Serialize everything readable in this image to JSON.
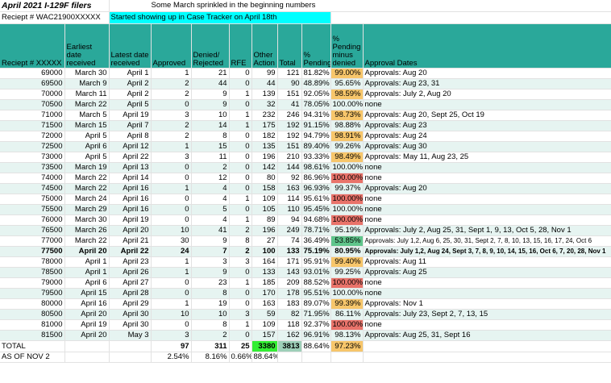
{
  "title": "April 2021 I-129F filers",
  "note1": "Some March sprinkled in the beginning numbers",
  "receipt_label": "Reciept # WAC21900XXXXX",
  "note2": "Started showing up in Case Tracker on April 18th",
  "headers": {
    "receipt": "Reciept # XXXXX",
    "earliest": "Earliest date received",
    "latest": "Latest date received",
    "approved": "Approved",
    "denied": "Denied/ Rejected",
    "rfe": "RFE",
    "other": "Other Action",
    "total": "Total",
    "pct": "% Pending",
    "pct_minus": "% Pending minus denied",
    "approval_dates": "Approval Dates"
  },
  "rows": [
    {
      "r": "69000",
      "e": "March 30",
      "l": "April 1",
      "a": "1",
      "d": "21",
      "rfe": "0",
      "o": "99",
      "t": "121",
      "p": "81.82%",
      "pm": "99.00%",
      "pmc": "y",
      "ad": "Approvals: Aug 20"
    },
    {
      "r": "69500",
      "e": "March 9",
      "l": "April 2",
      "a": "2",
      "d": "44",
      "rfe": "0",
      "o": "44",
      "t": "90",
      "p": "48.89%",
      "pm": "95.65%",
      "pmc": "y",
      "ad": "Approvals: Aug 23, 31"
    },
    {
      "r": "70000",
      "e": "March 11",
      "l": "April 2",
      "a": "2",
      "d": "9",
      "rfe": "1",
      "o": "139",
      "t": "151",
      "p": "92.05%",
      "pm": "98.59%",
      "pmc": "y",
      "ad": "Approvals: July 2, Aug 20"
    },
    {
      "r": "70500",
      "e": "March 22",
      "l": "April 5",
      "a": "0",
      "d": "9",
      "rfe": "0",
      "o": "32",
      "t": "41",
      "p": "78.05%",
      "pm": "100.00%",
      "pmc": "r",
      "ad": "none"
    },
    {
      "r": "71000",
      "e": "March 5",
      "l": "April 19",
      "a": "3",
      "d": "10",
      "rfe": "1",
      "o": "232",
      "t": "246",
      "p": "94.31%",
      "pm": "98.73%",
      "pmc": "y",
      "ad": "Approvals: Aug 20, Sept 25, Oct 19"
    },
    {
      "r": "71500",
      "e": "March 15",
      "l": "April 7",
      "a": "2",
      "d": "14",
      "rfe": "1",
      "o": "175",
      "t": "192",
      "p": "91.15%",
      "pm": "98.88%",
      "pmc": "y",
      "ad": "Approvals: Aug 23"
    },
    {
      "r": "72000",
      "e": "April 5",
      "l": "April 8",
      "a": "2",
      "d": "8",
      "rfe": "0",
      "o": "182",
      "t": "192",
      "p": "94.79%",
      "pm": "98.91%",
      "pmc": "y",
      "ad": "Approvals: Aug 24"
    },
    {
      "r": "72500",
      "e": "April 6",
      "l": "April 12",
      "a": "1",
      "d": "15",
      "rfe": "0",
      "o": "135",
      "t": "151",
      "p": "89.40%",
      "pm": "99.26%",
      "pmc": "y",
      "ad": "Approvals: Aug 30"
    },
    {
      "r": "73000",
      "e": "April 5",
      "l": "April 22",
      "a": "3",
      "d": "11",
      "rfe": "0",
      "o": "196",
      "t": "210",
      "p": "93.33%",
      "pm": "98.49%",
      "pmc": "y",
      "ad": "Approvals: May 11, Aug 23, 25"
    },
    {
      "r": "73500",
      "e": "March 19",
      "l": "April 13",
      "a": "0",
      "d": "2",
      "rfe": "0",
      "o": "142",
      "t": "144",
      "p": "98.61%",
      "pm": "100.00%",
      "pmc": "r",
      "ad": "none"
    },
    {
      "r": "74000",
      "e": "March 22",
      "l": "April 14",
      "a": "0",
      "d": "12",
      "rfe": "0",
      "o": "80",
      "t": "92",
      "p": "86.96%",
      "pm": "100.00%",
      "pmc": "r",
      "ad": "none"
    },
    {
      "r": "74500",
      "e": "March 22",
      "l": "April 16",
      "a": "1",
      "d": "4",
      "rfe": "0",
      "o": "158",
      "t": "163",
      "p": "96.93%",
      "pm": "99.37%",
      "pmc": "y",
      "ad": "Approvals: Aug 20"
    },
    {
      "r": "75000",
      "e": "March 24",
      "l": "April 16",
      "a": "0",
      "d": "4",
      "rfe": "1",
      "o": "109",
      "t": "114",
      "p": "95.61%",
      "pm": "100.00%",
      "pmc": "r",
      "ad": "none"
    },
    {
      "r": "75500",
      "e": "March 29",
      "l": "April 16",
      "a": "0",
      "d": "5",
      "rfe": "0",
      "o": "105",
      "t": "110",
      "p": "95.45%",
      "pm": "100.00%",
      "pmc": "r",
      "ad": "none"
    },
    {
      "r": "76000",
      "e": "March 30",
      "l": "April 19",
      "a": "0",
      "d": "4",
      "rfe": "1",
      "o": "89",
      "t": "94",
      "p": "94.68%",
      "pm": "100.00%",
      "pmc": "r",
      "ad": "none"
    },
    {
      "r": "76500",
      "e": "March 26",
      "l": "April 20",
      "a": "10",
      "d": "41",
      "rfe": "2",
      "o": "196",
      "t": "249",
      "p": "78.71%",
      "pm": "95.19%",
      "pmc": "y",
      "ad": "Approvals: July 2, Aug 25, 31, Sept 1, 9, 13, Oct 5, 28, Nov 1"
    },
    {
      "r": "77000",
      "e": "March 22",
      "l": "April 21",
      "a": "30",
      "d": "9",
      "rfe": "8",
      "o": "27",
      "t": "74",
      "p": "36.49%",
      "pm": "53.85%",
      "pmc": "g",
      "ad": "Approvals: July 1,2, Aug 6, 25, 30, 31, Sept 2, 7, 8, 10, 13, 15, 16, 17, 24, Oct 6",
      "small": true
    },
    {
      "r": "77500",
      "e": "April 20",
      "l": "April 22",
      "a": "24",
      "d": "7",
      "rfe": "2",
      "o": "100",
      "t": "133",
      "p": "75.19%",
      "pm": "80.95%",
      "pmc": "y",
      "ad": "Approvals: July 1,2, Aug 24, Sept 3, 7, 8, 9, 10, 14, 15, 16, Oct 6, 7, 20, 28, Nov 1",
      "small": true,
      "bold": true
    },
    {
      "r": "78000",
      "e": "April 1",
      "l": "April 23",
      "a": "1",
      "d": "3",
      "rfe": "3",
      "o": "164",
      "t": "171",
      "p": "95.91%",
      "pm": "99.40%",
      "pmc": "y",
      "ad": "Approvals: Aug 11"
    },
    {
      "r": "78500",
      "e": "April 1",
      "l": "April 26",
      "a": "1",
      "d": "9",
      "rfe": "0",
      "o": "133",
      "t": "143",
      "p": "93.01%",
      "pm": "99.25%",
      "pmc": "y",
      "ad": "Approvals: Aug 25"
    },
    {
      "r": "79000",
      "e": "April 6",
      "l": "April 27",
      "a": "0",
      "d": "23",
      "rfe": "1",
      "o": "185",
      "t": "209",
      "p": "88.52%",
      "pm": "100.00%",
      "pmc": "r",
      "ad": "none"
    },
    {
      "r": "79500",
      "e": "April 15",
      "l": "April 28",
      "a": "0",
      "d": "8",
      "rfe": "0",
      "o": "170",
      "t": "178",
      "p": "95.51%",
      "pm": "100.00%",
      "pmc": "r",
      "ad": "none"
    },
    {
      "r": "80000",
      "e": "April 16",
      "l": "April 29",
      "a": "1",
      "d": "19",
      "rfe": "0",
      "o": "163",
      "t": "183",
      "p": "89.07%",
      "pm": "99.39%",
      "pmc": "y",
      "ad": "Approvals: Nov 1"
    },
    {
      "r": "80500",
      "e": "April 20",
      "l": "April 30",
      "a": "10",
      "d": "10",
      "rfe": "3",
      "o": "59",
      "t": "82",
      "p": "71.95%",
      "pm": "86.11%",
      "pmc": "y",
      "ad": "Approvals: July 23, Sept 2, 7, 13, 15"
    },
    {
      "r": "81000",
      "e": "April 19",
      "l": "April 30",
      "a": "0",
      "d": "8",
      "rfe": "1",
      "o": "109",
      "t": "118",
      "p": "92.37%",
      "pm": "100.00%",
      "pmc": "r",
      "ad": "none"
    },
    {
      "r": "81500",
      "e": "April 20",
      "l": "May 3",
      "a": "3",
      "d": "2",
      "rfe": "0",
      "o": "157",
      "t": "162",
      "p": "96.91%",
      "pm": "98.13%",
      "pmc": "y",
      "ad": "Approvals: Aug 25, 31, Sept 16"
    }
  ],
  "total": {
    "label": "TOTAL",
    "a": "97",
    "d": "311",
    "rfe": "25",
    "o": "3380",
    "t": "3813",
    "p": "88.64%",
    "pm": "97.23%"
  },
  "asof": {
    "label": "AS OF NOV 2",
    "a": "2.54%",
    "d": "8.16%",
    "rfe": "0.66%",
    "o": "88.64%"
  },
  "colors": {
    "header": "#2aa89a",
    "cyan": "#00ffff",
    "yellow": "#f7c66b",
    "red": "#e9736a",
    "green": "#5fc58b",
    "bright_green": "#33ee33"
  }
}
